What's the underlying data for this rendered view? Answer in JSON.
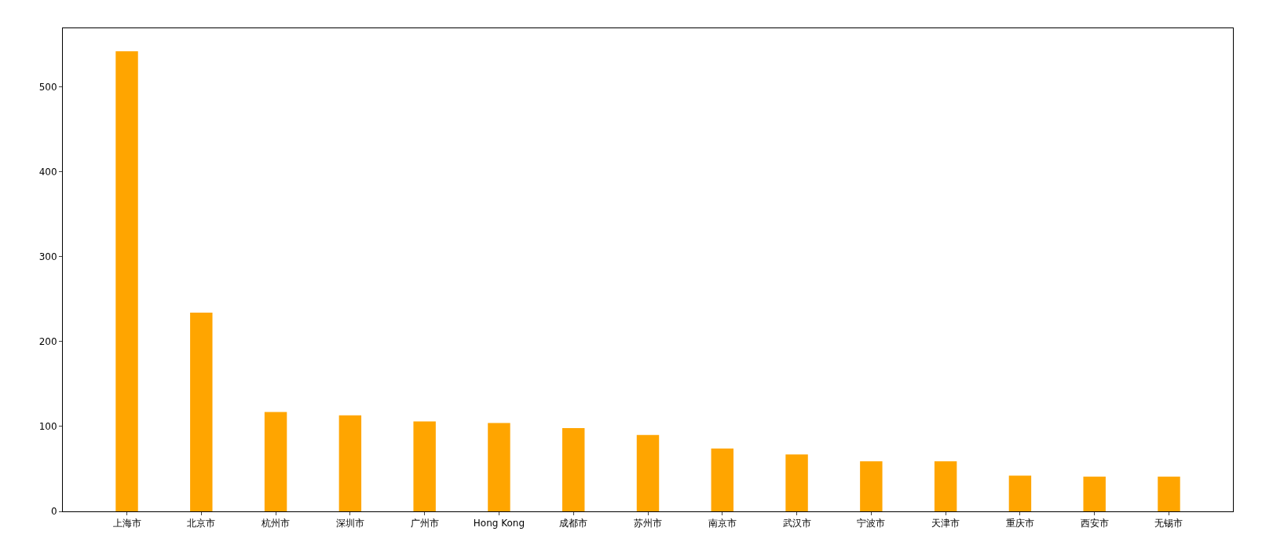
{
  "chart_data": {
    "type": "bar",
    "categories": [
      "上海市",
      "北京市",
      "杭州市",
      "深圳市",
      "广州市",
      "Hong Kong",
      "成都市",
      "苏州市",
      "南京市",
      "武汉市",
      "宁波市",
      "天津市",
      "重庆市",
      "西安市",
      "无锡市"
    ],
    "values": [
      542,
      234,
      117,
      113,
      106,
      104,
      98,
      90,
      74,
      67,
      59,
      59,
      42,
      41,
      41
    ],
    "color": "#ffa500",
    "ylim": [
      0,
      569
    ],
    "yticks": [
      0,
      100,
      200,
      300,
      400,
      500
    ]
  }
}
